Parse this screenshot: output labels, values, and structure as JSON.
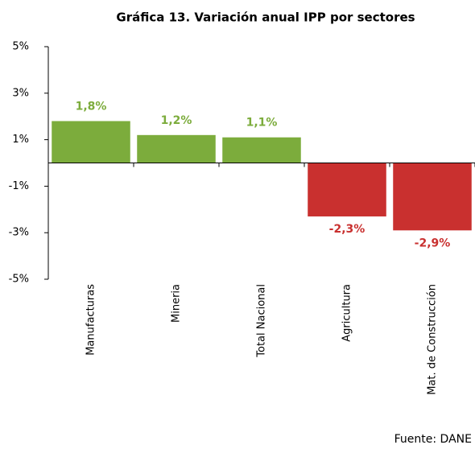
{
  "chart_data": {
    "type": "bar",
    "title": "Gráfica 13. Variación anual  IPP  por sectores",
    "categories": [
      "Manufacturas",
      "Mineria",
      "Total Nacional",
      "Agricultura",
      "Mat. de Construcción"
    ],
    "values": [
      1.8,
      1.2,
      1.1,
      -2.3,
      -2.9
    ],
    "value_labels": [
      "1,8%",
      "1,2%",
      "1,1%",
      "-2,3%",
      "-2,9%"
    ],
    "colors": [
      "#7cac3c",
      "#7cac3c",
      "#7cac3c",
      "#c9302f",
      "#c9302f"
    ],
    "ylim": [
      -5,
      5
    ],
    "yticks": [
      {
        "value": -5,
        "label": "-5%"
      },
      {
        "value": -3,
        "label": "-3%"
      },
      {
        "value": -1,
        "label": "-1%"
      },
      {
        "value": 1,
        "label": "1%"
      },
      {
        "value": 3,
        "label": "3%"
      },
      {
        "value": 5,
        "label": "5%"
      }
    ],
    "grid": false,
    "source": "Fuente: DANE"
  }
}
